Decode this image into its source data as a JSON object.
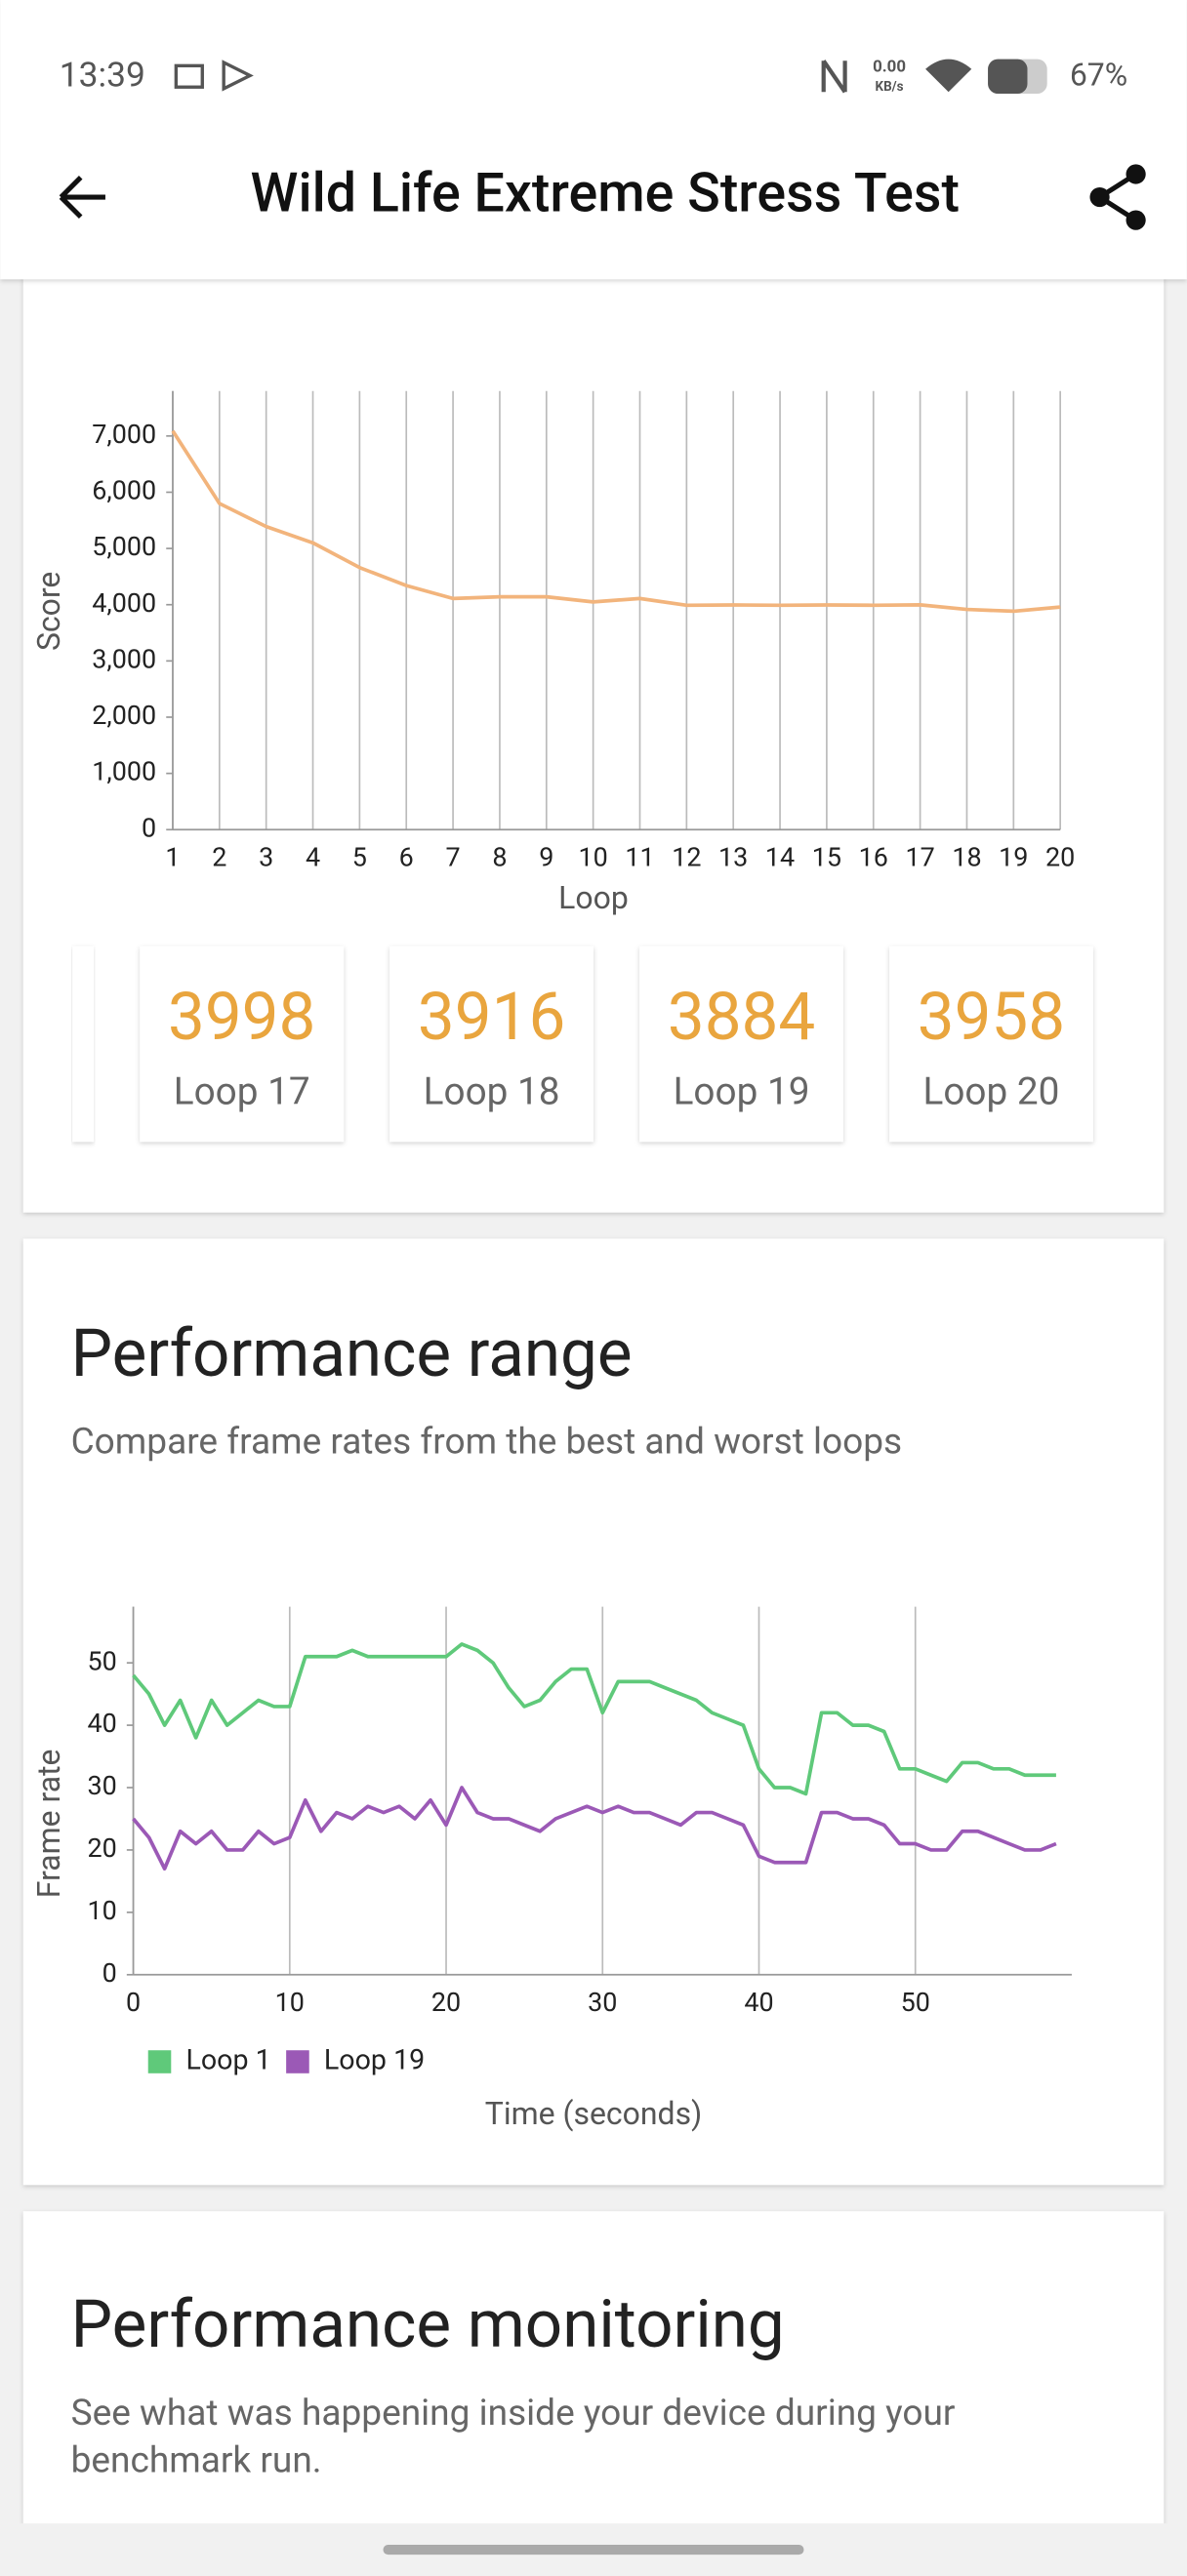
{
  "status_bar": {
    "time": "13:39",
    "speed": "0.00",
    "speed_unit": "KB/s",
    "battery": "67%"
  },
  "header": {
    "title": "Wild Life Extreme Stress Test"
  },
  "chart_data": [
    {
      "type": "line",
      "y_label": "Score",
      "x_label": "Loop",
      "x": [
        1,
        2,
        3,
        4,
        5,
        6,
        7,
        8,
        9,
        10,
        11,
        12,
        13,
        14,
        15,
        16,
        17,
        18,
        19,
        20
      ],
      "series": [
        {
          "name": "Score",
          "color": "#f2b47c",
          "values": [
            7090,
            5800,
            5390,
            5100,
            4660,
            4340,
            4110,
            4140,
            4140,
            4050,
            4110,
            3990,
            3995,
            3990,
            3995,
            3990,
            3998,
            3916,
            3884,
            3958
          ]
        }
      ],
      "xlim": [
        1,
        20
      ],
      "xticks": [
        1,
        2,
        3,
        4,
        5,
        6,
        7,
        8,
        9,
        10,
        11,
        12,
        13,
        14,
        15,
        16,
        17,
        18,
        19,
        20
      ],
      "ylim": [
        0,
        7800
      ],
      "yticks": [
        0,
        {
          "value": 1000,
          "label": "1,000"
        },
        {
          "value": 2000,
          "label": "2,000"
        },
        {
          "value": 3000,
          "label": "3,000"
        },
        {
          "value": 4000,
          "label": "4,000"
        },
        {
          "value": 5000,
          "label": "5,000"
        },
        {
          "value": 6000,
          "label": "6,000"
        },
        {
          "value": 7000,
          "label": "7,000"
        }
      ],
      "grid": "x",
      "legend": false
    },
    {
      "type": "line",
      "y_label": "Frame rate",
      "x_label": "Time (seconds)",
      "x": [
        0,
        1,
        2,
        3,
        4,
        5,
        6,
        7,
        8,
        9,
        10,
        11,
        12,
        13,
        14,
        15,
        16,
        17,
        18,
        19,
        20,
        21,
        22,
        23,
        24,
        25,
        26,
        27,
        28,
        29,
        30,
        31,
        32,
        33,
        34,
        35,
        36,
        37,
        38,
        39,
        40,
        41,
        42,
        43,
        44,
        45,
        46,
        47,
        48,
        49,
        50,
        51,
        52,
        53,
        54,
        55,
        56,
        57,
        58,
        59
      ],
      "series": [
        {
          "name": "Loop 1",
          "color": "#5fc97a",
          "values": [
            48,
            45,
            40,
            44,
            38,
            44,
            40,
            42,
            44,
            43,
            43,
            51,
            51,
            51,
            52,
            51,
            51,
            51,
            51,
            51,
            51,
            53,
            52,
            50,
            46,
            43,
            44,
            47,
            49,
            49,
            42,
            47,
            47,
            47,
            46,
            45,
            44,
            42,
            41,
            40,
            33,
            30,
            30,
            29,
            42,
            42,
            40,
            40,
            39,
            33,
            33,
            32,
            31,
            34,
            34,
            33,
            33,
            32,
            32,
            32
          ]
        },
        {
          "name": "Loop 19",
          "color": "#9b59b6",
          "values": [
            25,
            22,
            17,
            23,
            21,
            23,
            20,
            20,
            23,
            21,
            22,
            28,
            23,
            26,
            25,
            27,
            26,
            27,
            25,
            28,
            24,
            30,
            26,
            25,
            25,
            24,
            23,
            25,
            26,
            27,
            26,
            27,
            26,
            26,
            25,
            24,
            26,
            26,
            25,
            24,
            19,
            18,
            18,
            18,
            26,
            26,
            25,
            25,
            24,
            21,
            21,
            20,
            20,
            23,
            23,
            22,
            21,
            20,
            20,
            21
          ]
        }
      ],
      "xlim": [
        0,
        60
      ],
      "xticks": [
        0,
        10,
        20,
        30,
        40,
        50
      ],
      "ylim": [
        0,
        59
      ],
      "yticks": [
        0,
        10,
        20,
        30,
        40,
        50
      ],
      "grid": "x",
      "legend": "bottom-left"
    }
  ],
  "loop_cards": [
    {
      "score": "3998",
      "label": "Loop 17"
    },
    {
      "score": "3916",
      "label": "Loop 18"
    },
    {
      "score": "3884",
      "label": "Loop 19"
    },
    {
      "score": "3958",
      "label": "Loop 20"
    }
  ],
  "performance_range": {
    "title": "Performance range",
    "subtitle": "Compare frame rates from the best and worst loops"
  },
  "performance_monitoring": {
    "title": "Performance monitoring",
    "subtitle_line1": "See what was happening inside your device during your",
    "subtitle_line2": "benchmark run."
  }
}
